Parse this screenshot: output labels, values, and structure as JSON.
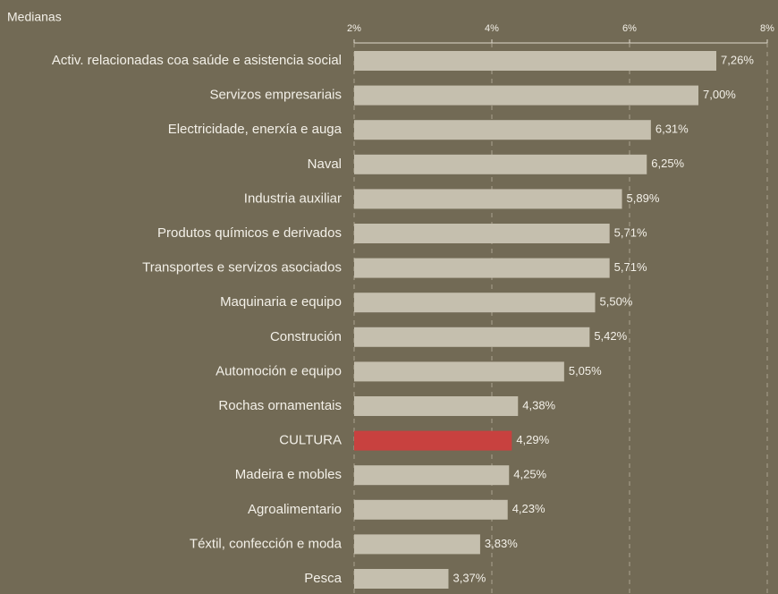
{
  "chart_data": {
    "type": "bar",
    "orientation": "horizontal",
    "axis_label": "Medianas",
    "categories": [
      "Activ. relacionadas coa saúde e asistencia social",
      "Servizos empresariais",
      "Electricidade, enerxía e auga",
      "Naval",
      "Industria auxiliar",
      "Produtos químicos e derivados",
      "Transportes e servizos asociados",
      "Maquinaria e equipo",
      "Construción",
      "Automoción e equipo",
      "Rochas ornamentais",
      "CULTURA",
      "Madeira e mobles",
      "Agroalimentario",
      "Téxtil, confección e moda",
      "Pesca"
    ],
    "values": [
      7.26,
      7.0,
      6.31,
      6.25,
      5.89,
      5.71,
      5.71,
      5.5,
      5.42,
      5.05,
      4.38,
      4.29,
      4.25,
      4.23,
      3.83,
      3.37
    ],
    "value_labels": [
      "7,26%",
      "7,00%",
      "6,31%",
      "6,25%",
      "5,89%",
      "5,71%",
      "5,71%",
      "5,50%",
      "5,42%",
      "5,05%",
      "4,38%",
      "4,29%",
      "4,25%",
      "4,23%",
      "3,83%",
      "3,37%"
    ],
    "colors": [
      "#c5bfae",
      "#c5bfae",
      "#c5bfae",
      "#c5bfae",
      "#c5bfae",
      "#c5bfae",
      "#c5bfae",
      "#c5bfae",
      "#c5bfae",
      "#c5bfae",
      "#c5bfae",
      "#c8413f",
      "#c5bfae",
      "#c5bfae",
      "#c5bfae",
      "#c5bfae"
    ],
    "xlim": [
      2,
      8
    ],
    "xticks": [
      {
        "value": 2,
        "label": "2%"
      },
      {
        "value": 4,
        "label": "4%"
      },
      {
        "value": 6,
        "label": "6%"
      },
      {
        "value": 8,
        "label": "8%"
      }
    ],
    "grid": true
  }
}
